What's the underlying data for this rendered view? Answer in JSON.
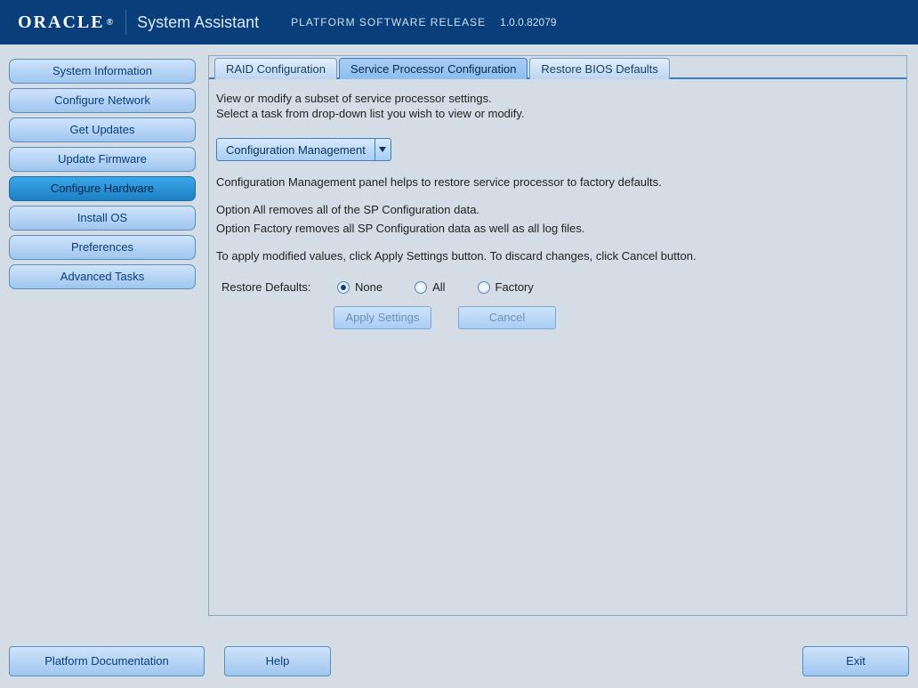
{
  "colors": {
    "header_bg": "#083e7a",
    "panel_bg": "#d4dde6",
    "border": "#8fa6bc",
    "btn_light": "#cfe3fb",
    "btn_dark": "#9fc6ef",
    "btn_border": "#5b8fb9",
    "tab_sep": "#3a7fc8",
    "text_primary": "#083e7a",
    "disabled_text": "#6b91b9",
    "radio_dot": "#0a3e74"
  },
  "header": {
    "logo": "ORACLE",
    "reg": "®",
    "title": "System Assistant",
    "subtitle": "PLATFORM SOFTWARE RELEASE",
    "version": "1.0.0.82079"
  },
  "sidenav": {
    "items": [
      {
        "label": "System Information",
        "selected": false
      },
      {
        "label": "Configure Network",
        "selected": false
      },
      {
        "label": "Get Updates",
        "selected": false
      },
      {
        "label": "Update Firmware",
        "selected": false
      },
      {
        "label": "Configure Hardware",
        "selected": true
      },
      {
        "label": "Install OS",
        "selected": false
      },
      {
        "label": "Preferences",
        "selected": false
      },
      {
        "label": "Advanced Tasks",
        "selected": false
      }
    ]
  },
  "tabs": [
    {
      "label": "RAID Configuration",
      "active": false
    },
    {
      "label": "Service Processor Configuration",
      "active": true
    },
    {
      "label": "Restore BIOS Defaults",
      "active": false
    }
  ],
  "panel": {
    "desc1": "View or modify a subset of service processor settings.",
    "desc2": "Select a task from drop-down list you wish to view or modify.",
    "dropdown": {
      "selected": "Configuration Management"
    },
    "p1": "Configuration Management panel helps to restore service processor to factory defaults.",
    "p2": "Option All removes all of the SP Configuration data.",
    "p3": "Option Factory removes all SP Configuration data as well as all log files.",
    "p4": "To apply modified values, click Apply Settings button. To discard changes, click Cancel button.",
    "restore_label": "Restore Defaults:",
    "radios": [
      {
        "label": "None",
        "checked": true
      },
      {
        "label": "All",
        "checked": false
      },
      {
        "label": "Factory",
        "checked": false
      }
    ],
    "apply_btn": "Apply Settings",
    "cancel_btn": "Cancel"
  },
  "footer": {
    "doc": "Platform Documentation",
    "help": "Help",
    "exit": "Exit"
  }
}
